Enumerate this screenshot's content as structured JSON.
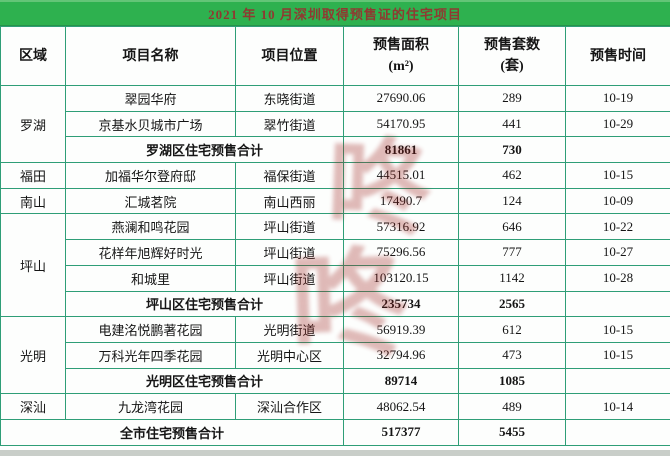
{
  "title": "2021 年 10 月深圳取得预售证的住宅项目",
  "columns": [
    {
      "lines": [
        "区域"
      ]
    },
    {
      "lines": [
        "项目名称"
      ]
    },
    {
      "lines": [
        "项目位置"
      ]
    },
    {
      "lines": [
        "预售面积",
        "(m²)"
      ]
    },
    {
      "lines": [
        "预售套数",
        "(套)"
      ]
    },
    {
      "lines": [
        "预售时间"
      ]
    }
  ],
  "sections": [
    {
      "region": "罗湖",
      "projects": [
        {
          "name": "翠园华府",
          "location": "东晓街道",
          "area": "27690.06",
          "units": "289",
          "date": "10-19"
        },
        {
          "name": "京基水贝城市广场",
          "location": "翠竹街道",
          "area": "54170.95",
          "units": "441",
          "date": "10-29"
        }
      ],
      "subtotal": {
        "label": "罗湖区住宅预售合计",
        "area": "81861",
        "units": "730"
      }
    },
    {
      "region": "福田",
      "projects": [
        {
          "name": "加福华尔登府邸",
          "location": "福保街道",
          "area": "44515.01",
          "units": "462",
          "date": "10-15"
        }
      ],
      "subtotal": null
    },
    {
      "region": "南山",
      "projects": [
        {
          "name": "汇城茗院",
          "location": "南山西丽",
          "area": "17490.7",
          "units": "124",
          "date": "10-09"
        }
      ],
      "subtotal": null
    },
    {
      "region": "坪山",
      "projects": [
        {
          "name": "燕澜和鸣花园",
          "location": "坪山街道",
          "area": "57316.92",
          "units": "646",
          "date": "10-22"
        },
        {
          "name": "花样年旭辉好时光",
          "location": "坪山街道",
          "area": "75296.56",
          "units": "777",
          "date": "10-27"
        },
        {
          "name": "和城里",
          "location": "坪山街道",
          "area": "103120.15",
          "units": "1142",
          "date": "10-28"
        }
      ],
      "subtotal": {
        "label": "坪山区住宅预售合计",
        "area": "235734",
        "units": "2565"
      }
    },
    {
      "region": "光明",
      "projects": [
        {
          "name": "电建洺悦鹏著花园",
          "location": "光明街道",
          "area": "56919.39",
          "units": "612",
          "date": "10-15"
        },
        {
          "name": "万科光年四季花园",
          "location": "光明中心区",
          "area": "32794.96",
          "units": "473",
          "date": "10-15"
        }
      ],
      "subtotal": {
        "label": "光明区住宅预售合计",
        "area": "89714",
        "units": "1085"
      }
    },
    {
      "region": "深汕",
      "projects": [
        {
          "name": "九龙湾花园",
          "location": "深汕合作区",
          "area": "48062.54",
          "units": "489",
          "date": "10-14"
        }
      ],
      "subtotal": null
    }
  ],
  "grand_total": {
    "label": "全市住宅预售合计",
    "area": "517377",
    "units": "5455"
  },
  "watermark": {
    "glyph1": "咚",
    "glyph2": "咚"
  },
  "colors": {
    "title_bar_green": "#2eb14f",
    "title_text_red": "#8f3a31",
    "grid_border_teal": "#2f9e77",
    "watermark_red": "#9b1e19"
  }
}
